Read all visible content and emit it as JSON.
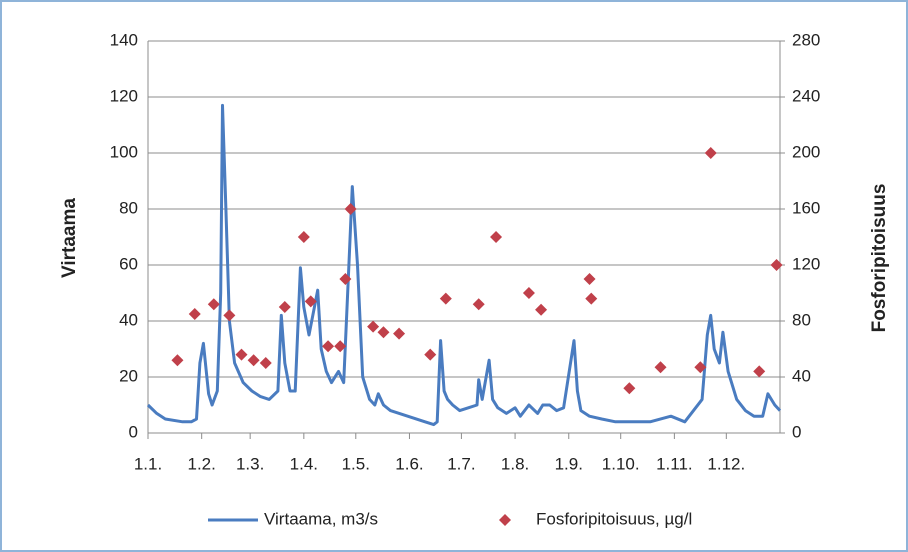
{
  "chart_data": {
    "type": "combo",
    "y_label": "Virtaama",
    "y2_label": "Fosforipitoisuus",
    "xlim": [
      0,
      365
    ],
    "ylim": [
      0,
      140
    ],
    "y2lim": [
      0,
      280
    ],
    "grid": true,
    "legend": "bottom",
    "xticks": [
      {
        "value": 0,
        "label": "1.1."
      },
      {
        "value": 31,
        "label": "1.2."
      },
      {
        "value": 59,
        "label": "1.3."
      },
      {
        "value": 90,
        "label": "1.4."
      },
      {
        "value": 120,
        "label": "1.5."
      },
      {
        "value": 151,
        "label": "1.6."
      },
      {
        "value": 181,
        "label": "1.7."
      },
      {
        "value": 212,
        "label": "1.8."
      },
      {
        "value": 243,
        "label": "1.9."
      },
      {
        "value": 273,
        "label": "1.10."
      },
      {
        "value": 304,
        "label": "1.11."
      },
      {
        "value": 334,
        "label": "1.12."
      }
    ],
    "yticks": [
      0,
      20,
      40,
      60,
      80,
      100,
      120,
      140
    ],
    "y2ticks": [
      0,
      40,
      80,
      120,
      160,
      200,
      240,
      280
    ],
    "series": [
      {
        "name": "Virtaama, m3/s",
        "type": "line",
        "color": "#4a7cc0",
        "x": [
          0,
          5,
          10,
          20,
          25,
          28,
          30,
          32,
          35,
          37,
          40,
          42,
          43,
          45,
          47,
          50,
          55,
          60,
          65,
          70,
          75,
          77,
          79,
          82,
          85,
          88,
          90,
          93,
          98,
          100,
          103,
          106,
          110,
          113,
          116,
          118,
          121,
          124,
          128,
          131,
          133,
          136,
          140,
          150,
          160,
          165,
          167,
          169,
          171,
          173,
          176,
          180,
          185,
          190,
          191,
          193,
          197,
          199,
          202,
          207,
          212,
          215,
          220,
          225,
          228,
          232,
          236,
          240,
          246,
          248,
          250,
          255,
          262,
          270,
          280,
          290,
          302,
          310,
          320,
          323,
          325,
          327,
          330,
          332,
          335,
          340,
          345,
          350,
          355,
          358,
          362,
          365
        ],
        "values": [
          10,
          7,
          5,
          4,
          4,
          5,
          25,
          32,
          14,
          10,
          15,
          50,
          117,
          80,
          40,
          25,
          18,
          15,
          13,
          12,
          15,
          42,
          25,
          15,
          15,
          59,
          45,
          35,
          51,
          30,
          22,
          18,
          22,
          18,
          60,
          88,
          60,
          20,
          12,
          10,
          14,
          10,
          8,
          6,
          4,
          3,
          4,
          33,
          15,
          12,
          10,
          8,
          9,
          10,
          19,
          12,
          26,
          12,
          9,
          7,
          9,
          6,
          10,
          7,
          10,
          10,
          8,
          9,
          33,
          15,
          8,
          6,
          5,
          4,
          4,
          4,
          6,
          4,
          12,
          35,
          42,
          30,
          25,
          36,
          22,
          12,
          8,
          6,
          6,
          14,
          10,
          8
        ]
      },
      {
        "name": "Fosforipitoisuus, µg/l",
        "type": "scatter",
        "axis": "y2",
        "color": "#c0404a",
        "x": [
          17,
          27,
          38,
          47,
          54,
          61,
          68,
          79,
          90,
          94,
          104,
          111,
          114,
          117,
          130,
          136,
          145,
          163,
          172,
          191,
          201,
          220,
          227,
          255,
          256,
          278,
          296,
          319,
          325,
          353,
          363
        ],
        "values": [
          52,
          85,
          92,
          84,
          56,
          52,
          50,
          90,
          140,
          94,
          62,
          62,
          110,
          160,
          76,
          72,
          71,
          56,
          96,
          92,
          140,
          100,
          88,
          110,
          96,
          32,
          47,
          47,
          200,
          44,
          120
        ]
      }
    ]
  }
}
